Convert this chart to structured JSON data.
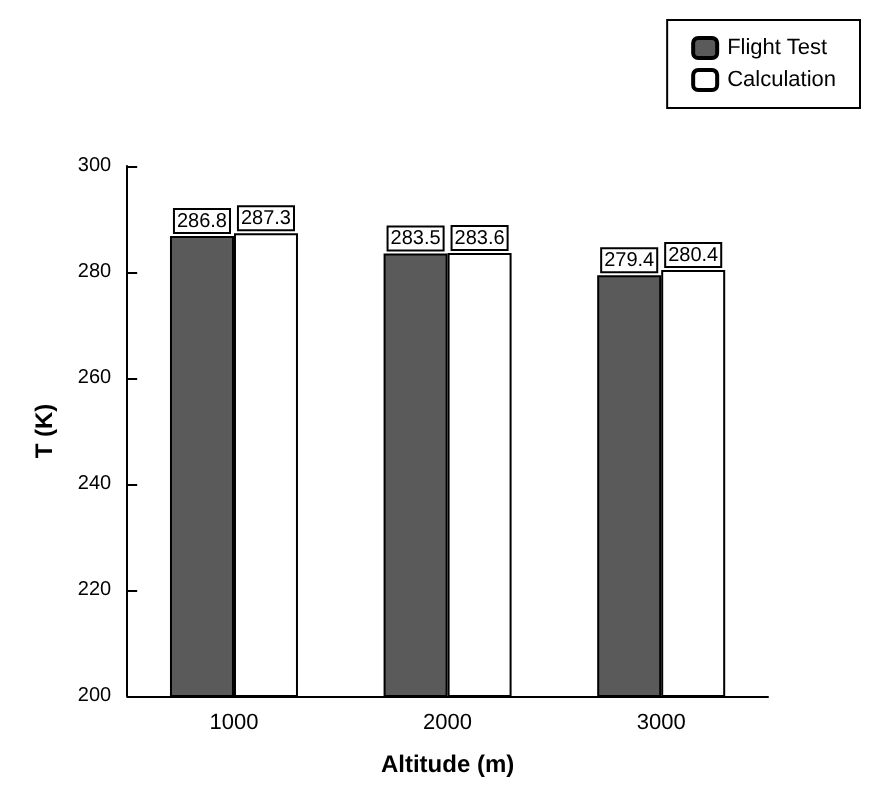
{
  "chart_data": {
    "type": "bar",
    "xlabel": "Altitude (m)",
    "ylabel": "T (K)",
    "categories": [
      "1000",
      "2000",
      "3000"
    ],
    "series": [
      {
        "name": "Flight Test",
        "color": "#5a5a5a",
        "values": [
          286.8,
          283.5,
          279.4
        ]
      },
      {
        "name": "Calculation",
        "color": "#ffffff",
        "values": [
          287.3,
          283.6,
          280.4
        ]
      }
    ],
    "ylim": [
      200,
      300
    ],
    "yticks": [
      200,
      220,
      240,
      260,
      280,
      300
    ],
    "grid": false,
    "legend": "top right",
    "data_labels": true
  }
}
